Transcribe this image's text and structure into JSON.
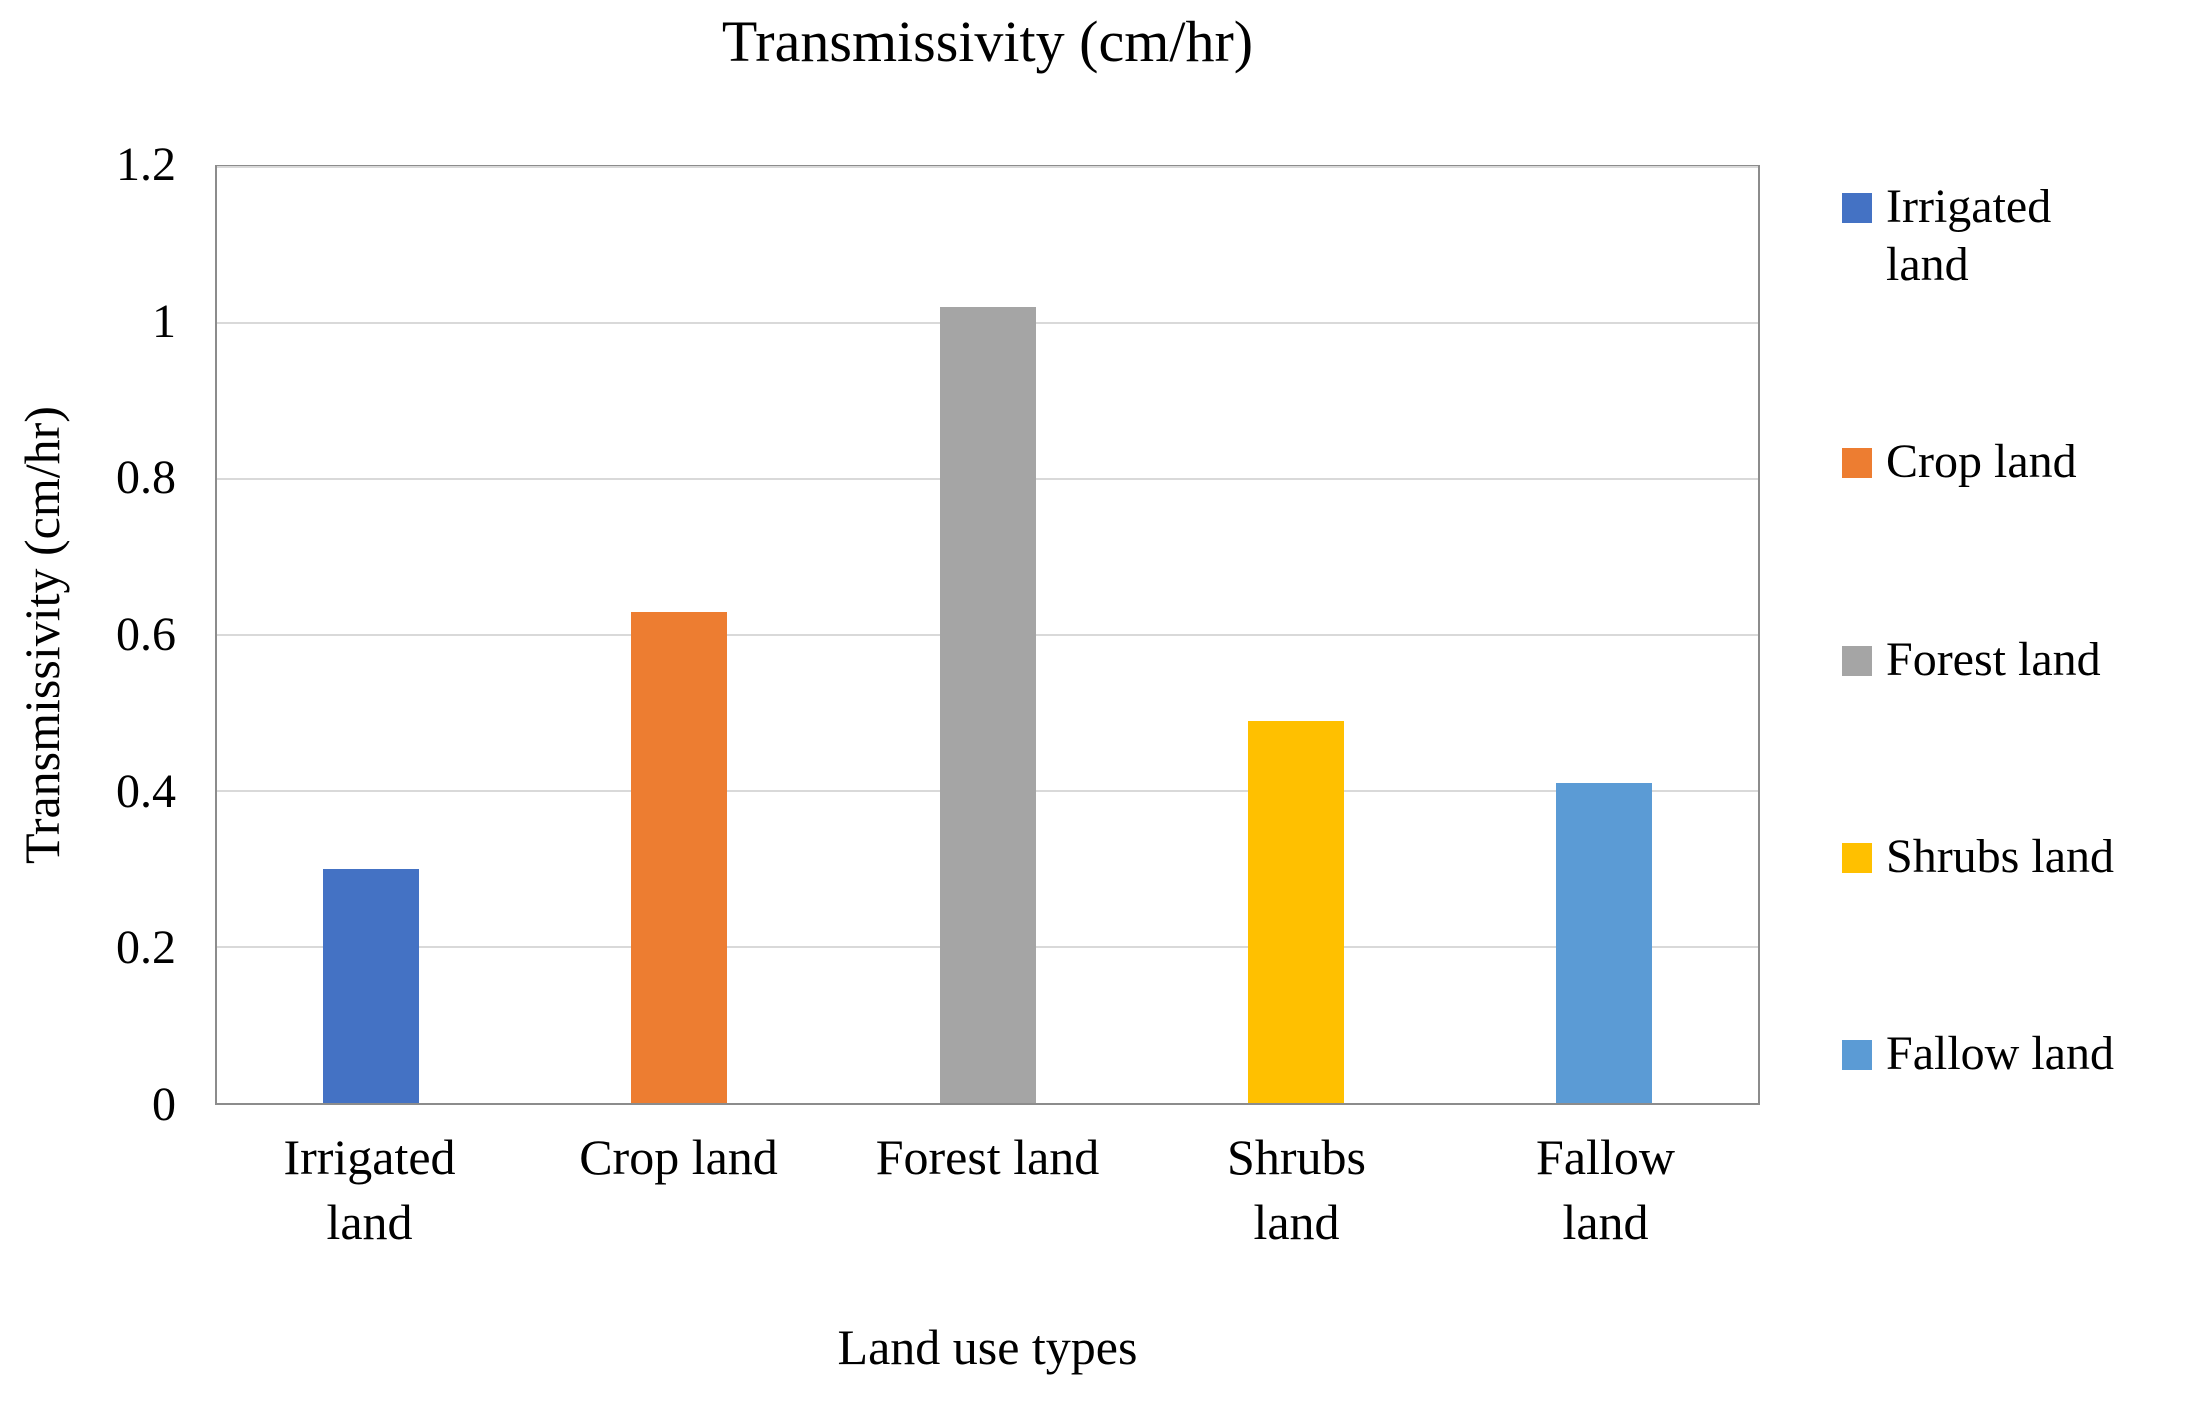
{
  "chart_data": {
    "type": "bar",
    "title": "Transmissivity (cm/hr)",
    "xlabel": "Land use types",
    "ylabel": "Transmissivity (cm/hr)",
    "ylim": [
      0,
      1.2
    ],
    "grid": true,
    "legend_position": "right",
    "yticks": [
      0,
      0.2,
      0.4,
      0.6,
      0.8,
      1,
      1.2
    ],
    "ytick_labels": [
      "0",
      "0.2",
      "0.4",
      "0.6",
      "0.8",
      "1",
      "1.2"
    ],
    "categories": [
      "Irrigated land",
      "Crop land",
      "Forest land",
      "Shrubs land",
      "Fallow land"
    ],
    "categories_wrapped": [
      [
        "Irrigated",
        "land"
      ],
      [
        "Crop land"
      ],
      [
        "Forest land"
      ],
      [
        "Shrubs",
        "land"
      ],
      [
        "Fallow",
        "land"
      ]
    ],
    "values": [
      0.3,
      0.63,
      1.02,
      0.49,
      0.41
    ],
    "colors": [
      "#4472c4",
      "#ed7d31",
      "#a5a5a5",
      "#ffc000",
      "#5b9bd5"
    ],
    "legend": [
      {
        "lines": [
          "Irrigated",
          "land"
        ]
      },
      {
        "lines": [
          "Crop land"
        ]
      },
      {
        "lines": [
          "Forest land"
        ]
      },
      {
        "lines": [
          "Shrubs land"
        ]
      },
      {
        "lines": [
          "Fallow land"
        ]
      }
    ]
  }
}
